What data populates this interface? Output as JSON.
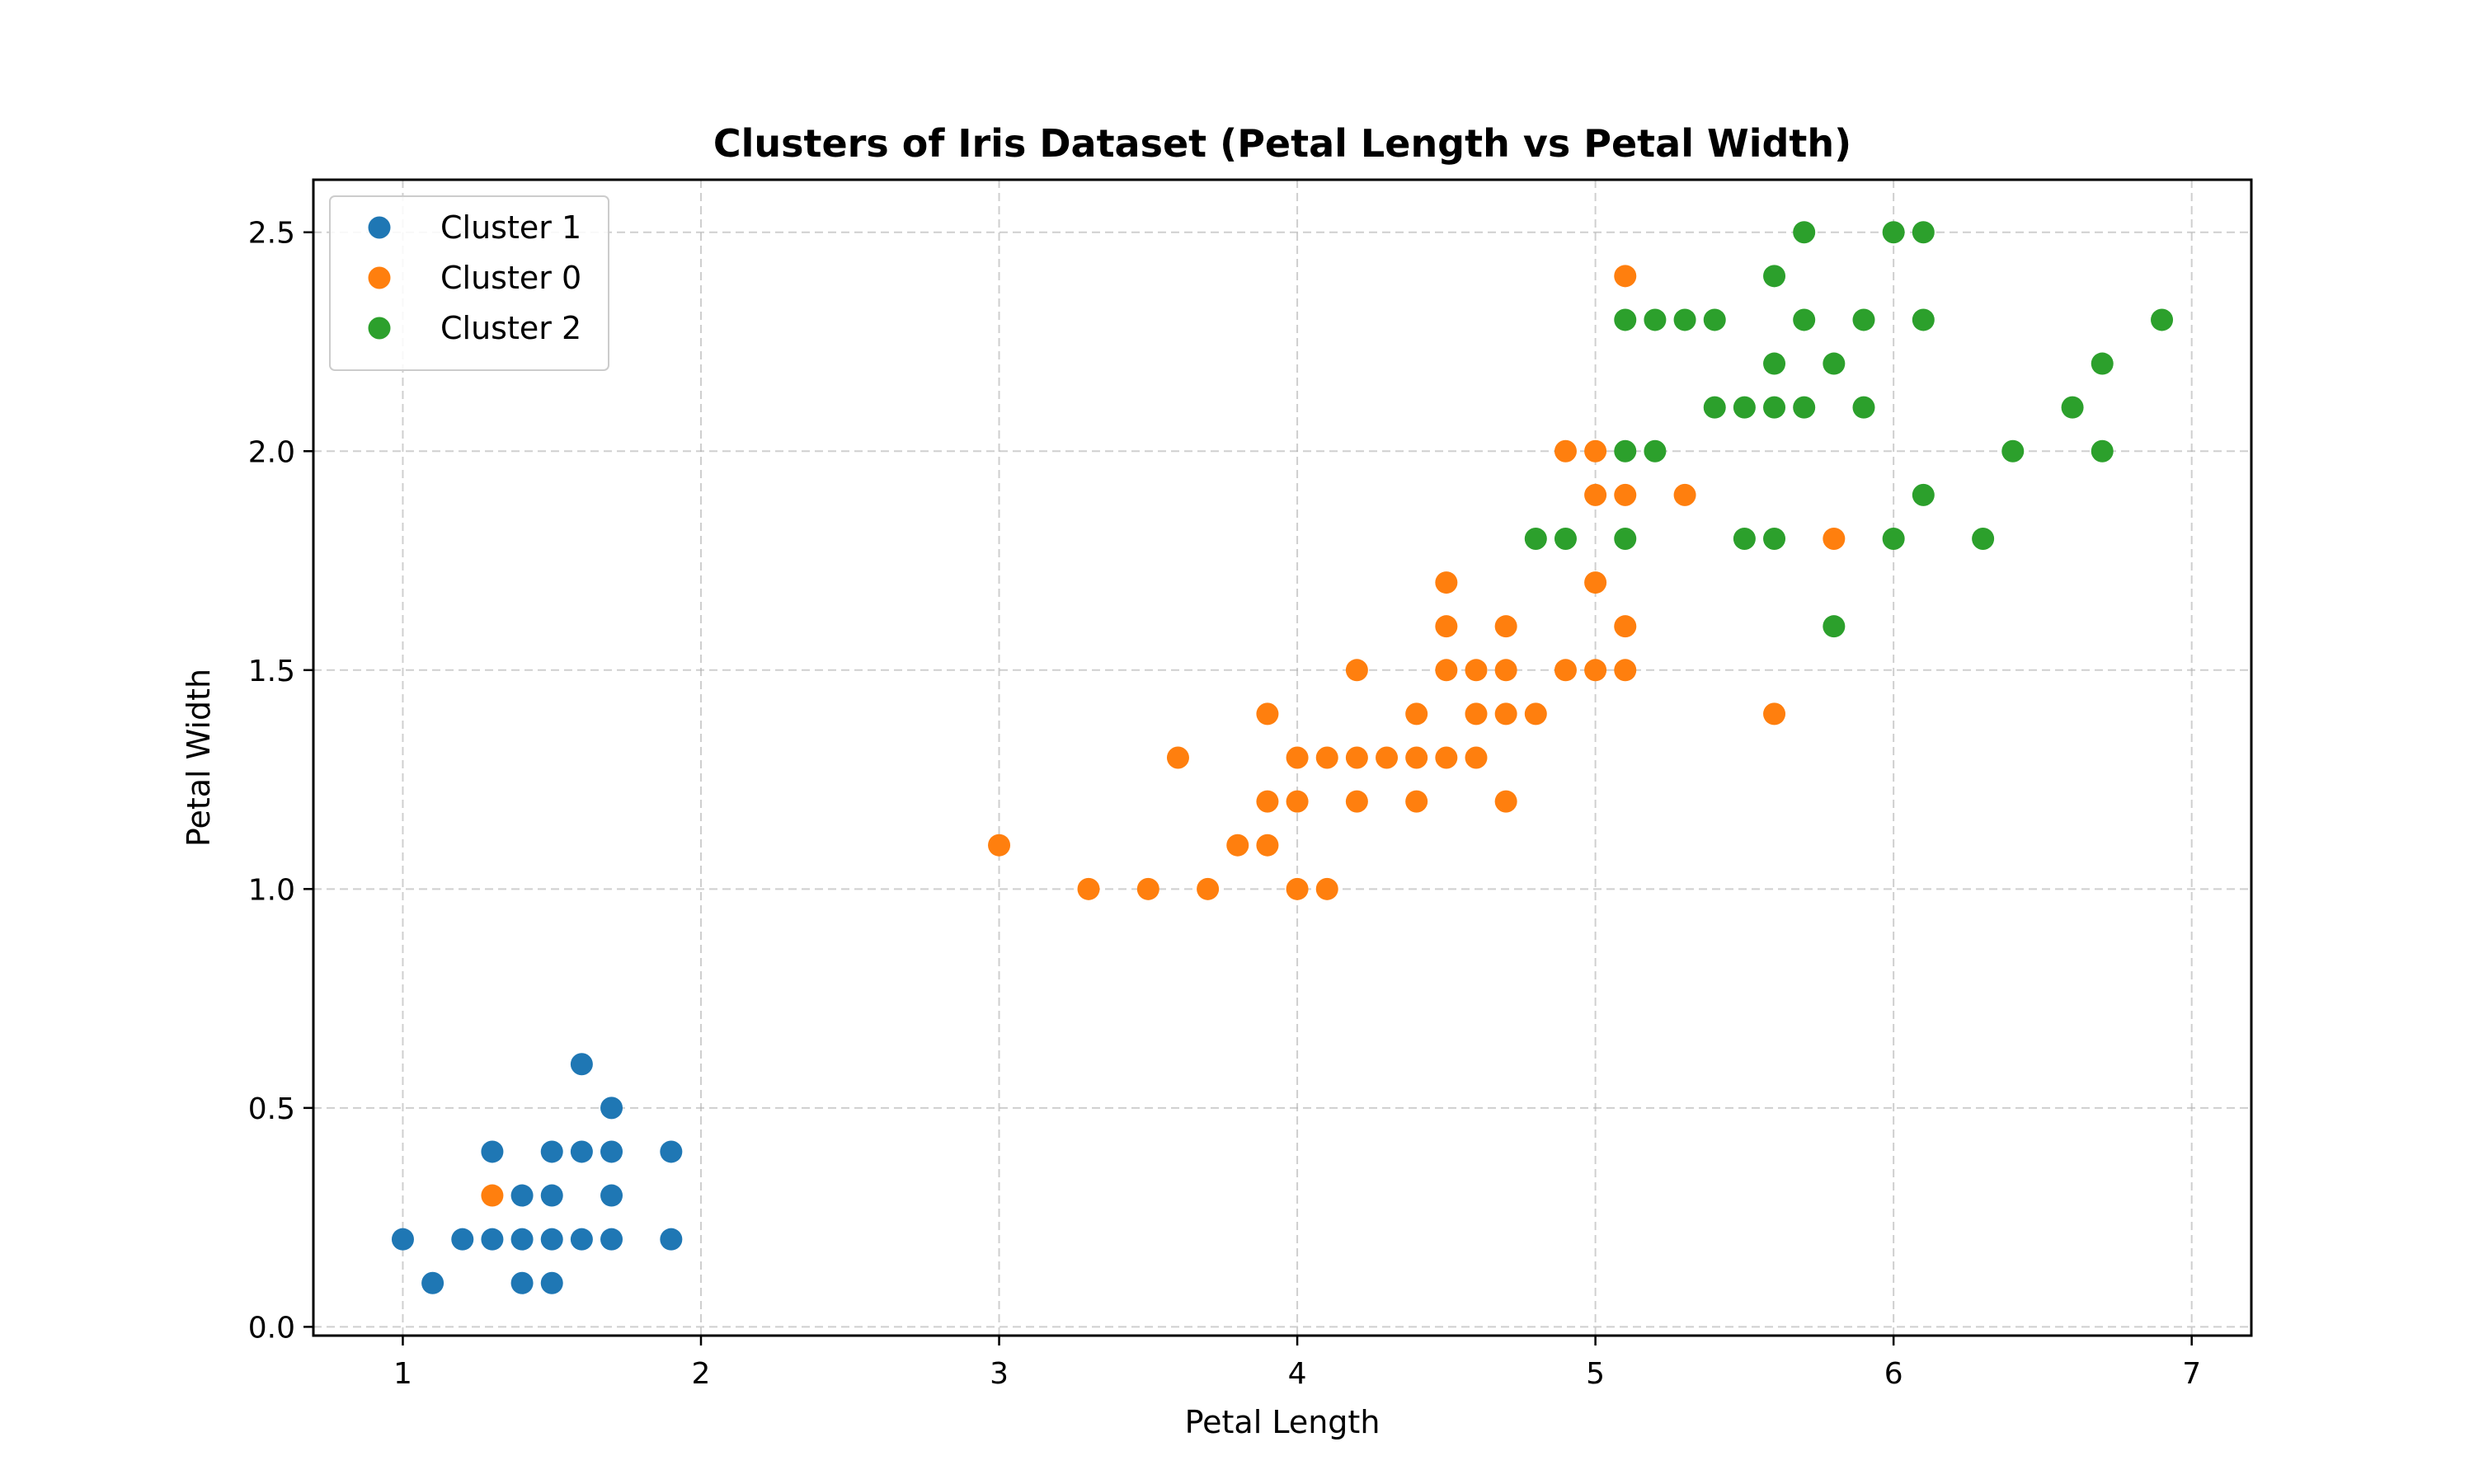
{
  "chart_data": {
    "type": "scatter",
    "title": "Clusters of Iris Dataset (Petal Length vs Petal Width)",
    "xlabel": "Petal Length",
    "ylabel": "Petal Width",
    "xlim": [
      0.7,
      7.2
    ],
    "ylim": [
      -0.02,
      2.62
    ],
    "xticks": [
      1,
      2,
      3,
      4,
      5,
      6,
      7
    ],
    "xtick_labels": [
      "1",
      "2",
      "3",
      "4",
      "5",
      "6",
      "7"
    ],
    "yticks": [
      0.0,
      0.5,
      1.0,
      1.5,
      2.0,
      2.5
    ],
    "ytick_labels": [
      "0.0",
      "0.5",
      "1.0",
      "1.5",
      "2.0",
      "2.5"
    ],
    "grid": true,
    "legend_position": "top-left",
    "series": [
      {
        "name": "Cluster 1",
        "color": "#1f77b4",
        "points": [
          [
            1.0,
            0.2
          ],
          [
            1.1,
            0.1
          ],
          [
            1.2,
            0.2
          ],
          [
            1.3,
            0.2
          ],
          [
            1.3,
            0.4
          ],
          [
            1.4,
            0.1
          ],
          [
            1.4,
            0.2
          ],
          [
            1.4,
            0.3
          ],
          [
            1.5,
            0.1
          ],
          [
            1.5,
            0.2
          ],
          [
            1.5,
            0.3
          ],
          [
            1.5,
            0.4
          ],
          [
            1.6,
            0.2
          ],
          [
            1.6,
            0.4
          ],
          [
            1.6,
            0.6
          ],
          [
            1.7,
            0.2
          ],
          [
            1.7,
            0.3
          ],
          [
            1.7,
            0.4
          ],
          [
            1.7,
            0.5
          ],
          [
            1.9,
            0.2
          ],
          [
            1.9,
            0.4
          ]
        ]
      },
      {
        "name": "Cluster 0",
        "color": "#ff7f0e",
        "points": [
          [
            1.3,
            0.3
          ],
          [
            3.0,
            1.1
          ],
          [
            3.3,
            1.0
          ],
          [
            3.5,
            1.0
          ],
          [
            3.6,
            1.3
          ],
          [
            3.7,
            1.0
          ],
          [
            3.8,
            1.1
          ],
          [
            3.9,
            1.1
          ],
          [
            3.9,
            1.2
          ],
          [
            3.9,
            1.4
          ],
          [
            4.0,
            1.0
          ],
          [
            4.0,
            1.2
          ],
          [
            4.0,
            1.3
          ],
          [
            4.1,
            1.0
          ],
          [
            4.1,
            1.3
          ],
          [
            4.2,
            1.2
          ],
          [
            4.2,
            1.3
          ],
          [
            4.2,
            1.5
          ],
          [
            4.3,
            1.3
          ],
          [
            4.4,
            1.2
          ],
          [
            4.4,
            1.3
          ],
          [
            4.4,
            1.4
          ],
          [
            4.5,
            1.3
          ],
          [
            4.5,
            1.5
          ],
          [
            4.5,
            1.6
          ],
          [
            4.5,
            1.7
          ],
          [
            4.6,
            1.3
          ],
          [
            4.6,
            1.4
          ],
          [
            4.6,
            1.5
          ],
          [
            4.7,
            1.2
          ],
          [
            4.7,
            1.4
          ],
          [
            4.7,
            1.5
          ],
          [
            4.7,
            1.6
          ],
          [
            4.8,
            1.4
          ],
          [
            4.9,
            1.5
          ],
          [
            4.9,
            2.0
          ],
          [
            5.0,
            1.5
          ],
          [
            5.0,
            1.7
          ],
          [
            5.0,
            1.9
          ],
          [
            5.0,
            2.0
          ],
          [
            5.1,
            1.5
          ],
          [
            5.1,
            1.6
          ],
          [
            5.1,
            1.9
          ],
          [
            5.1,
            2.4
          ],
          [
            5.3,
            1.9
          ],
          [
            5.6,
            1.4
          ],
          [
            5.8,
            1.8
          ]
        ]
      },
      {
        "name": "Cluster 2",
        "color": "#2ca02c",
        "points": [
          [
            4.8,
            1.8
          ],
          [
            4.9,
            1.8
          ],
          [
            5.1,
            1.8
          ],
          [
            5.1,
            2.0
          ],
          [
            5.1,
            2.3
          ],
          [
            5.2,
            2.0
          ],
          [
            5.2,
            2.3
          ],
          [
            5.3,
            2.3
          ],
          [
            5.4,
            2.1
          ],
          [
            5.4,
            2.3
          ],
          [
            5.5,
            1.8
          ],
          [
            5.5,
            2.1
          ],
          [
            5.6,
            1.8
          ],
          [
            5.6,
            2.1
          ],
          [
            5.6,
            2.2
          ],
          [
            5.6,
            2.4
          ],
          [
            5.7,
            2.1
          ],
          [
            5.7,
            2.3
          ],
          [
            5.7,
            2.5
          ],
          [
            5.8,
            1.6
          ],
          [
            5.8,
            2.2
          ],
          [
            5.9,
            2.1
          ],
          [
            5.9,
            2.3
          ],
          [
            6.0,
            1.8
          ],
          [
            6.0,
            2.5
          ],
          [
            6.1,
            1.9
          ],
          [
            6.1,
            2.3
          ],
          [
            6.1,
            2.5
          ],
          [
            6.3,
            1.8
          ],
          [
            6.4,
            2.0
          ],
          [
            6.6,
            2.1
          ],
          [
            6.7,
            2.0
          ],
          [
            6.7,
            2.2
          ],
          [
            6.9,
            2.3
          ]
        ]
      }
    ]
  }
}
